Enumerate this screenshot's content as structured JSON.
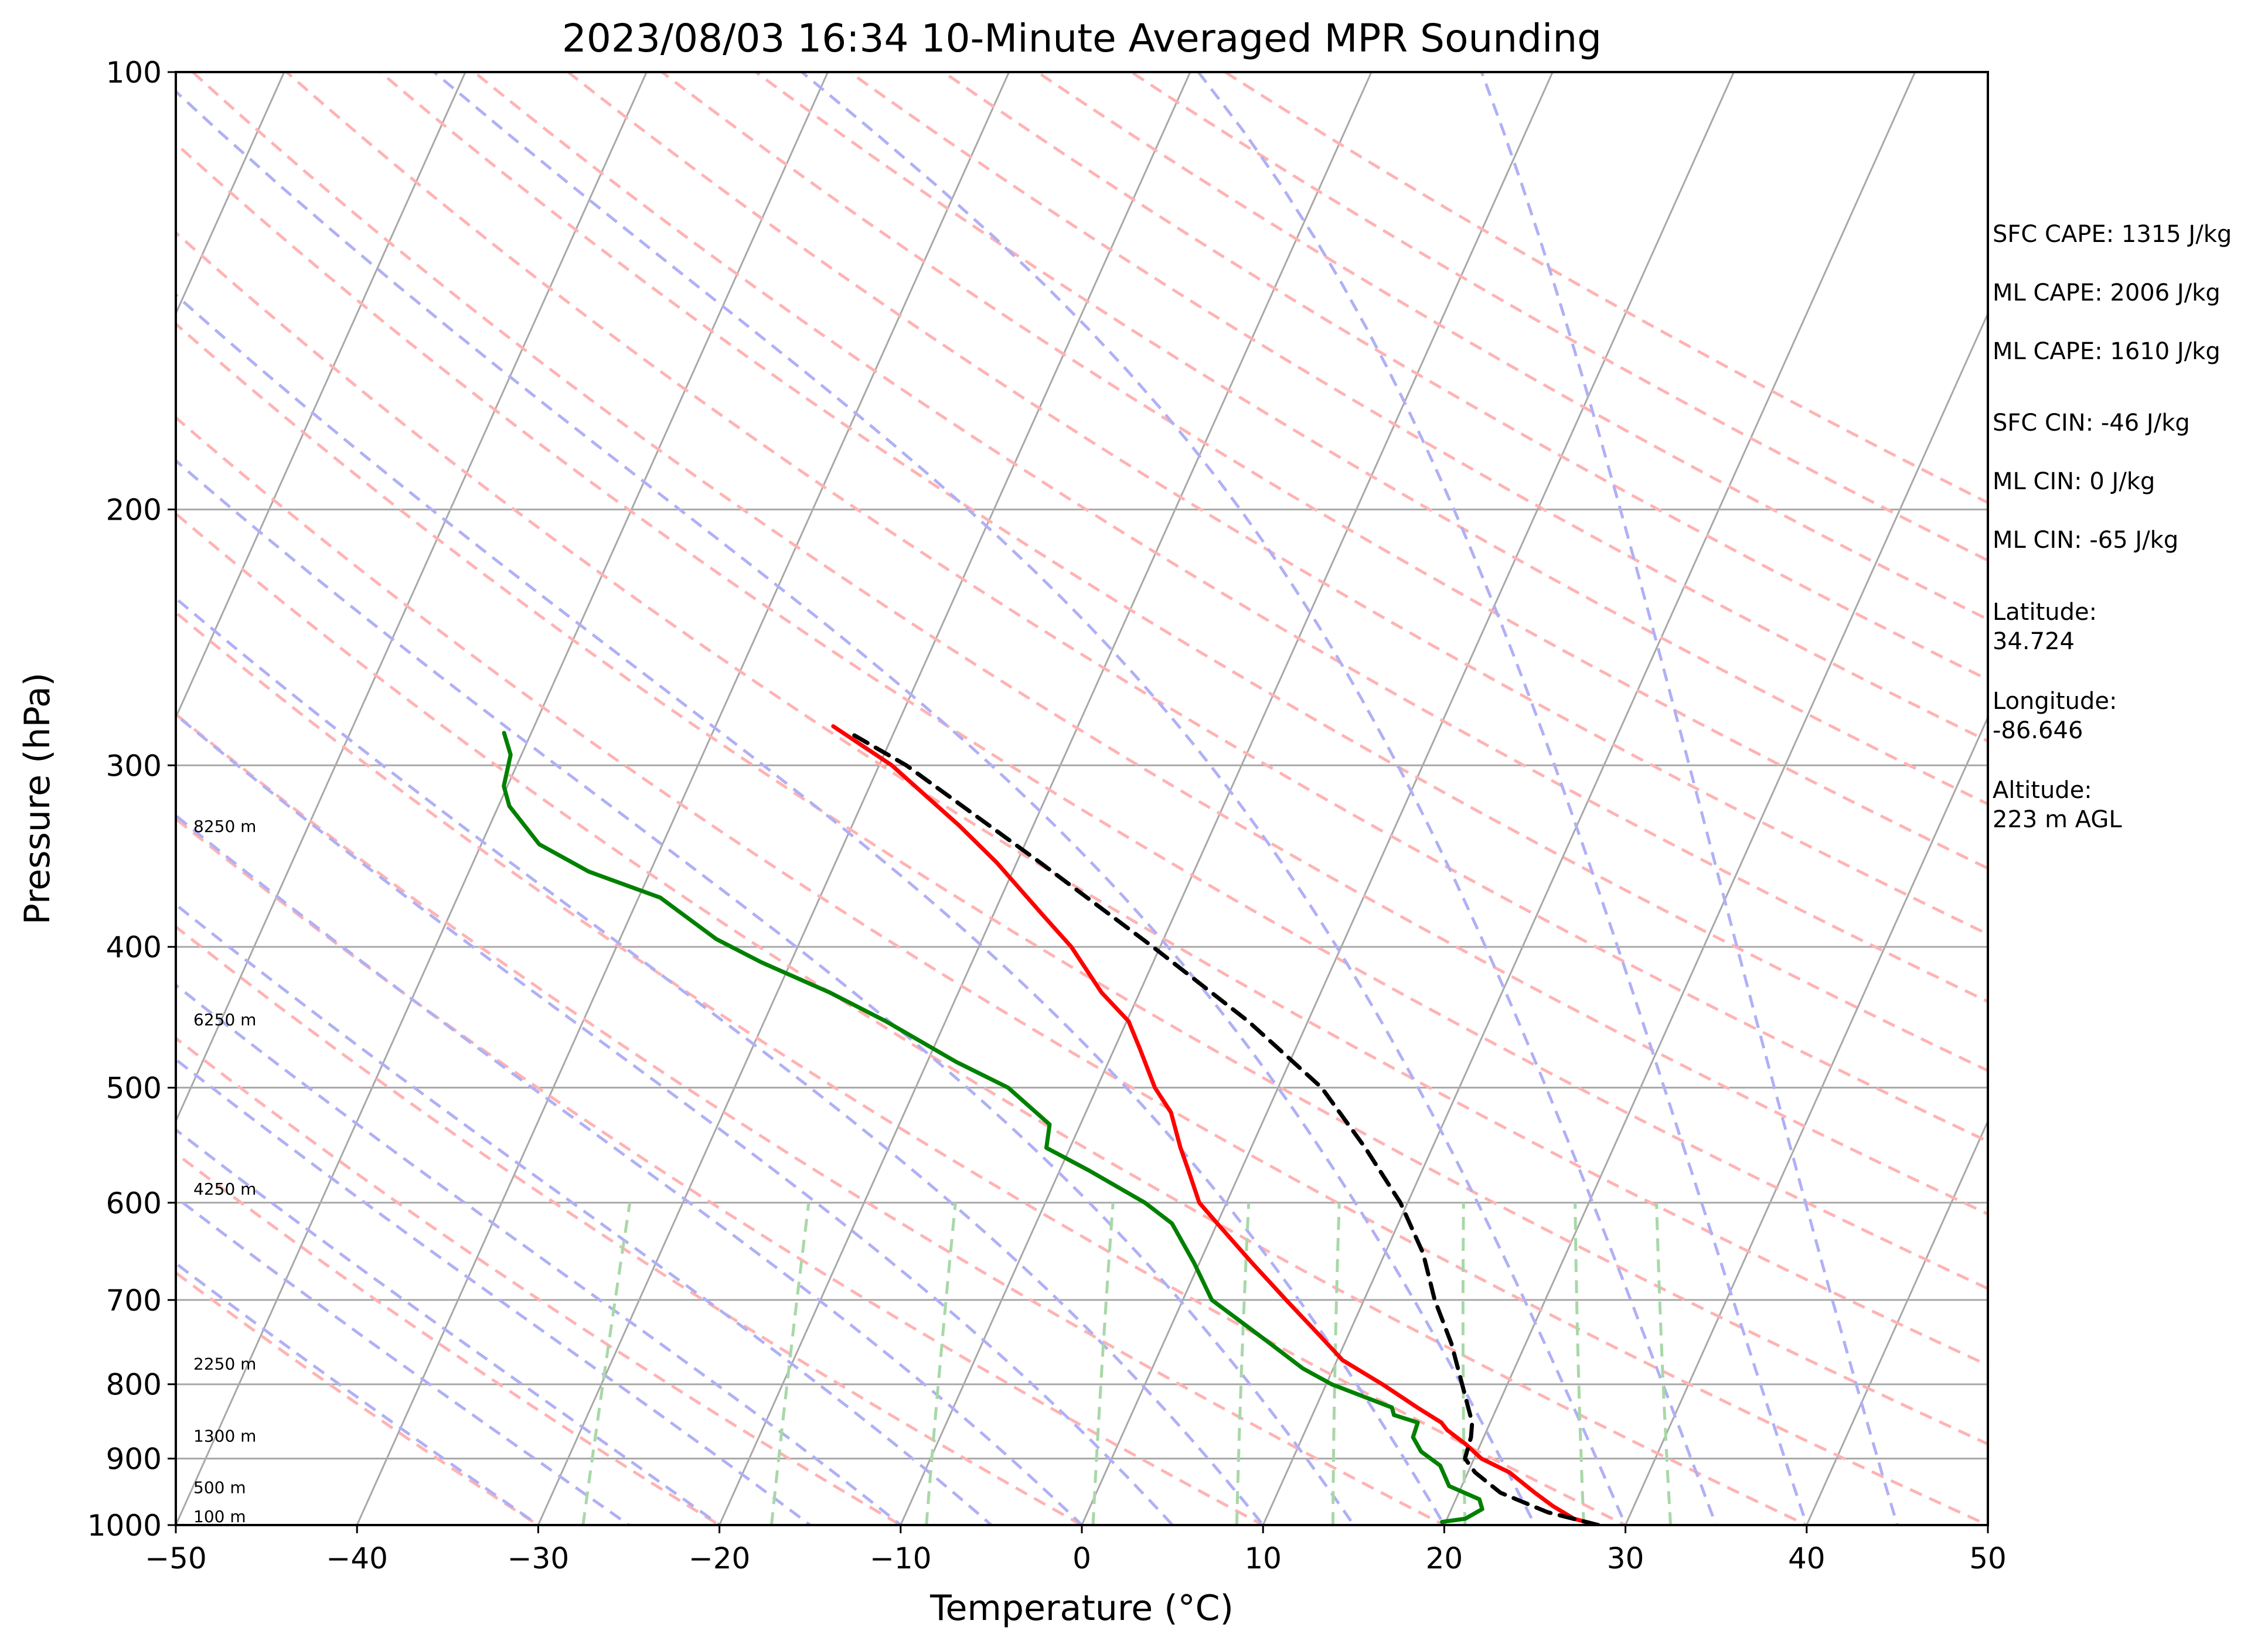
{
  "chart_data": {
    "type": "line",
    "title": "2023/08/03 16:34 10-Minute Averaged MPR Sounding",
    "xlabel": "Temperature (°C)",
    "ylabel": "Pressure (hPa)",
    "xlim": [
      -50,
      50
    ],
    "ylim": [
      1000,
      100
    ],
    "yscale": "log",
    "grid": true,
    "x_ticks": [
      "−50",
      "−40",
      "−30",
      "−20",
      "−10",
      "0",
      "10",
      "20",
      "30",
      "40",
      "50"
    ],
    "y_ticks": [
      "100",
      "200",
      "300",
      "400",
      "500",
      "600",
      "700",
      "800",
      "900",
      "1000"
    ],
    "height_labels": [
      "8250 m",
      "6250 m",
      "4250 m",
      "2250 m",
      "1300 m",
      "500 m",
      "100 m"
    ],
    "series": [
      {
        "role": "temperature",
        "color": "#ff0000",
        "points": [
          [
            1000,
            28.5
          ],
          [
            990,
            27.0
          ],
          [
            970,
            25.5
          ],
          [
            950,
            24.2
          ],
          [
            920,
            22.3
          ],
          [
            900,
            20.4
          ],
          [
            880,
            19.2
          ],
          [
            860,
            17.8
          ],
          [
            850,
            17.3
          ],
          [
            830,
            15.6
          ],
          [
            800,
            13.1
          ],
          [
            770,
            10.3
          ],
          [
            740,
            8.4
          ],
          [
            700,
            5.7
          ],
          [
            660,
            2.9
          ],
          [
            620,
            0.0
          ],
          [
            600,
            -1.5
          ],
          [
            570,
            -2.9
          ],
          [
            550,
            -3.9
          ],
          [
            520,
            -5.3
          ],
          [
            500,
            -6.8
          ],
          [
            470,
            -8.6
          ],
          [
            450,
            -9.9
          ],
          [
            430,
            -12.1
          ],
          [
            400,
            -14.9
          ],
          [
            380,
            -17.3
          ],
          [
            350,
            -21.1
          ],
          [
            330,
            -24.1
          ],
          [
            300,
            -29.3
          ],
          [
            282,
            -33.5
          ]
        ]
      },
      {
        "role": "dewpoint",
        "color": "#008000",
        "points": [
          [
            995,
            19.8
          ],
          [
            990,
            21.0
          ],
          [
            975,
            21.7
          ],
          [
            960,
            21.3
          ],
          [
            940,
            19.3
          ],
          [
            910,
            18.3
          ],
          [
            890,
            16.9
          ],
          [
            870,
            16.1
          ],
          [
            850,
            16.0
          ],
          [
            840,
            14.5
          ],
          [
            830,
            14.2
          ],
          [
            800,
            10.3
          ],
          [
            780,
            8.3
          ],
          [
            750,
            5.9
          ],
          [
            700,
            1.6
          ],
          [
            660,
            -0.3
          ],
          [
            620,
            -2.5
          ],
          [
            600,
            -4.5
          ],
          [
            570,
            -8.4
          ],
          [
            550,
            -11.3
          ],
          [
            530,
            -11.7
          ],
          [
            500,
            -14.9
          ],
          [
            480,
            -18.4
          ],
          [
            450,
            -23.3
          ],
          [
            430,
            -27.1
          ],
          [
            410,
            -31.6
          ],
          [
            395,
            -34.7
          ],
          [
            370,
            -38.8
          ],
          [
            355,
            -43.4
          ],
          [
            340,
            -46.8
          ],
          [
            320,
            -49.4
          ],
          [
            310,
            -50.2
          ],
          [
            295,
            -50.6
          ],
          [
            285,
            -51.5
          ]
        ]
      },
      {
        "role": "parcel",
        "color": "#000000",
        "style": "dashed",
        "points": [
          [
            1000,
            28.5
          ],
          [
            980,
            25.4
          ],
          [
            950,
            22.3
          ],
          [
            920,
            20.4
          ],
          [
            900,
            19.5
          ],
          [
            870,
            19.3
          ],
          [
            850,
            19.0
          ],
          [
            800,
            17.5
          ],
          [
            750,
            15.9
          ],
          [
            700,
            13.9
          ],
          [
            650,
            12.1
          ],
          [
            600,
            9.6
          ],
          [
            550,
            6.3
          ],
          [
            500,
            2.4
          ],
          [
            450,
            -3.3
          ],
          [
            400,
            -10.4
          ],
          [
            350,
            -18.7
          ],
          [
            300,
            -28.5
          ],
          [
            285,
            -32.4
          ]
        ]
      }
    ]
  },
  "info": {
    "sfc_cape": "SFC CAPE: 1315 J/kg",
    "ml_cape_1": "ML CAPE: 2006 J/kg",
    "ml_cape_2": "ML CAPE: 1610 J/kg",
    "sfc_cin": "SFC CIN: -46 J/kg",
    "ml_cin_1": "ML CIN: 0 J/kg",
    "ml_cin_2": "ML CIN: -65 J/kg",
    "latitude_label": "Latitude:",
    "latitude_value": "34.724",
    "longitude_label": "Longitude:",
    "longitude_value": "-86.646",
    "altitude_label": "Altitude:",
    "altitude_value": "223 m AGL"
  },
  "colors": {
    "isotherm": "#a8a8a8",
    "dry_adiabat": "#ffb3b3",
    "moist_adiabat": "#b0b0f5",
    "mixing_ratio": "#a8d8a8"
  }
}
